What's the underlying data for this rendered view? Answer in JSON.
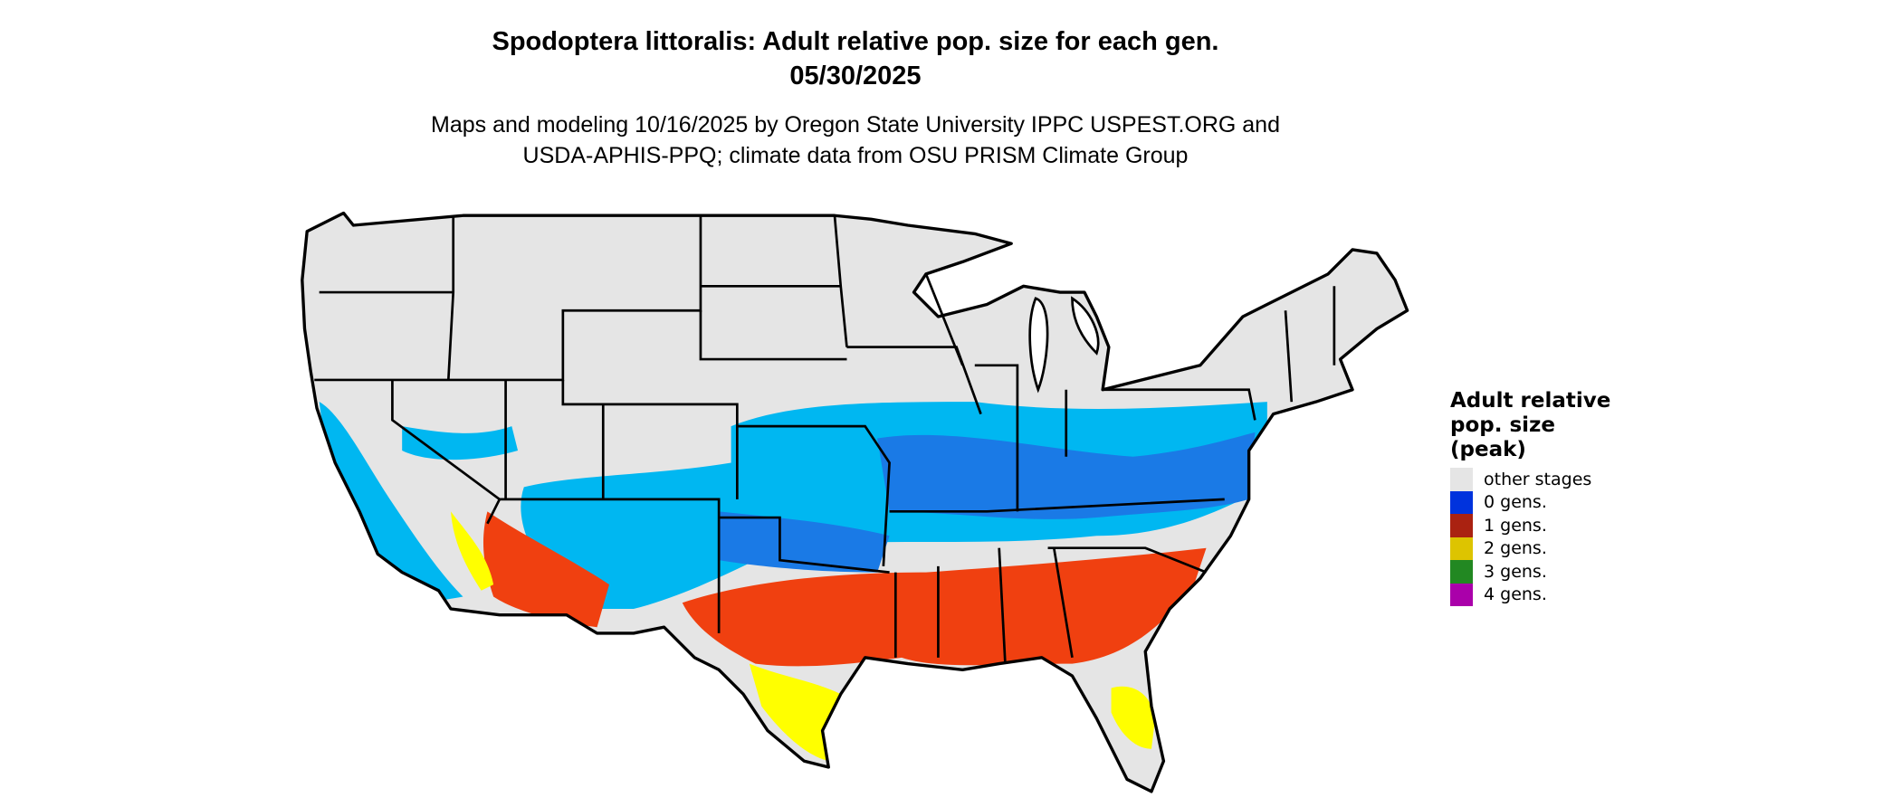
{
  "title": {
    "line1": "Spodoptera littoralis: Adult relative pop. size for each gen.",
    "line2": "05/30/2025"
  },
  "subtitle": {
    "line1": "Maps and modeling 10/16/2025 by Oregon State University IPPC USPEST.ORG and",
    "line2": "USDA-APHIS-PPQ; climate data from OSU PRISM Climate Group"
  },
  "legend": {
    "title_lines": [
      "Adult relative",
      "pop. size",
      "(peak)"
    ],
    "items": [
      {
        "label": "other stages",
        "color": "#e5e5e5"
      },
      {
        "label": "0 gens.",
        "color": "#0033dd"
      },
      {
        "label": "1 gens.",
        "color": "#aa2211"
      },
      {
        "label": "2 gens.",
        "color": "#ddc400"
      },
      {
        "label": "3 gens.",
        "color": "#228822"
      },
      {
        "label": "4 gens.",
        "color": "#aa00aa"
      }
    ]
  },
  "map_colors": {
    "base": "#e5e5e5",
    "light_blue": "#00b7f1",
    "blue": "#1a7ae6",
    "red_orange": "#f04010",
    "yellow": "#ffff00",
    "green": "#33bb33"
  }
}
